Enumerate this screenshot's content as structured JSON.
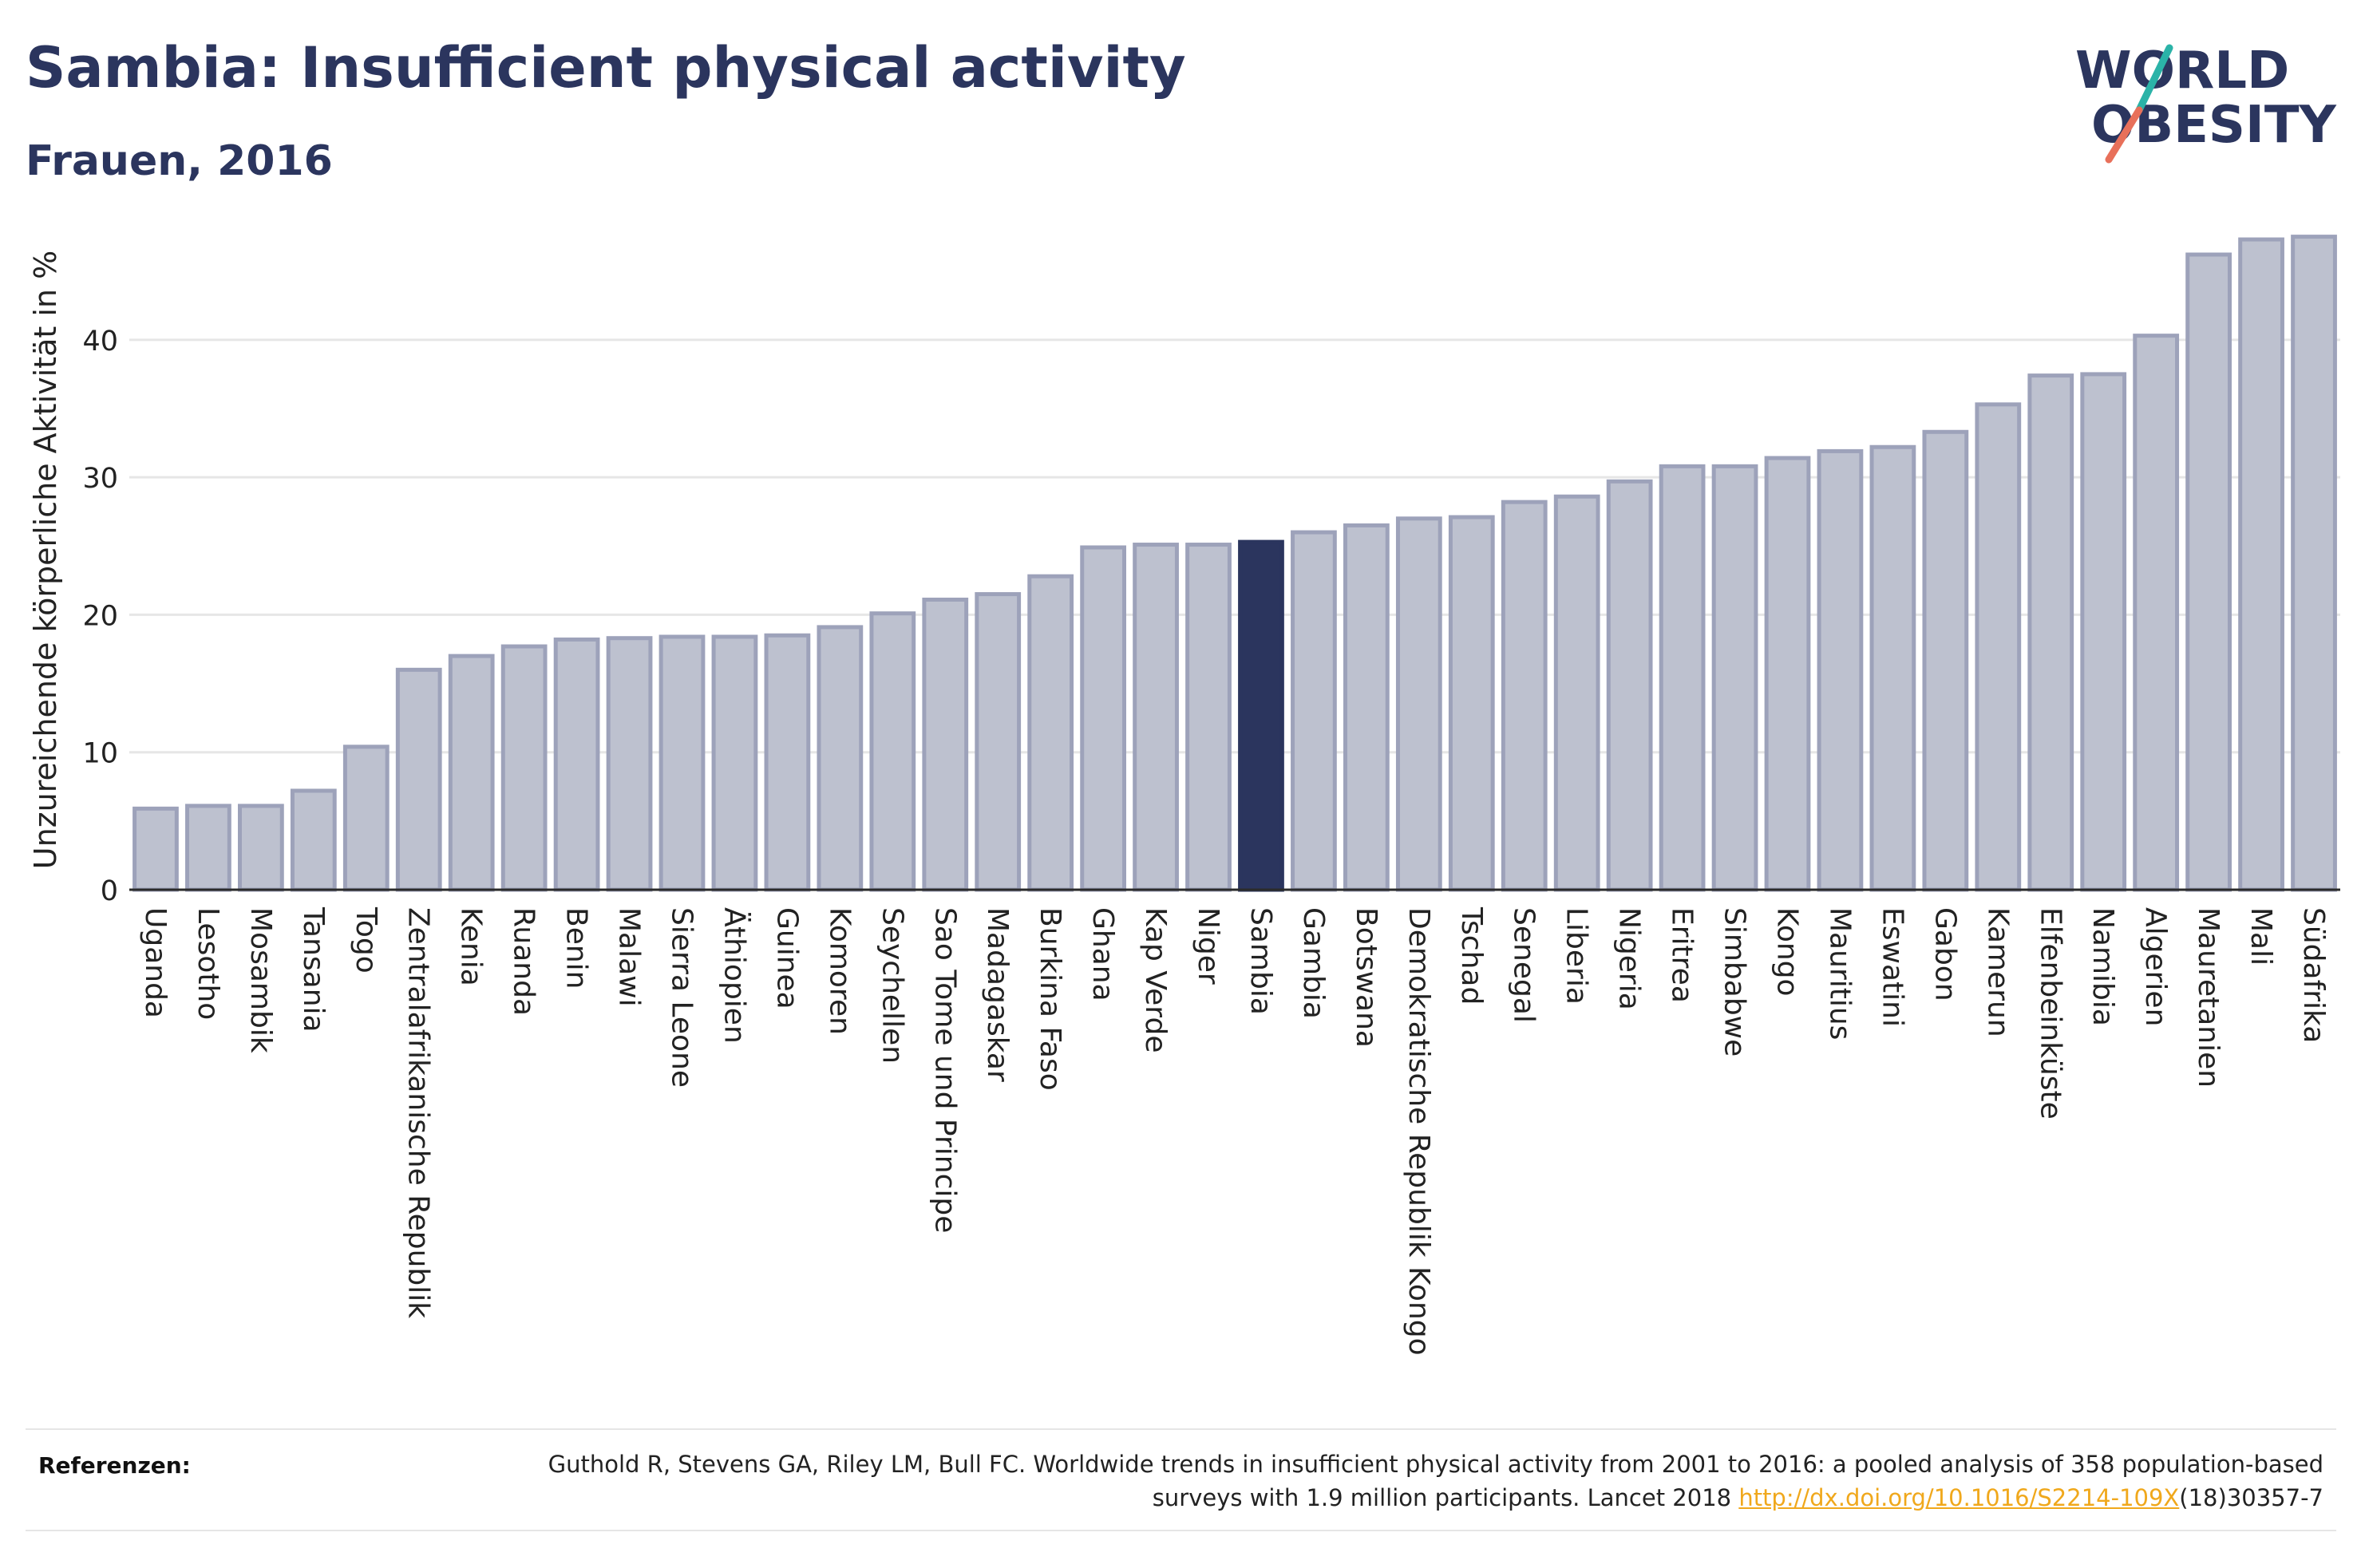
{
  "header": {
    "title": "Sambia: Insufficient physical activity",
    "subtitle": "Frauen, 2016"
  },
  "logo": {
    "line1": "WORLD",
    "line2": "OBESITY",
    "colors": {
      "text": "#2b355e",
      "slash_teal": "#2bb3a8",
      "slash_coral": "#e8705a"
    }
  },
  "colors": {
    "bar_fill": "#bdc1cf",
    "bar_stroke": "#9da2ba",
    "highlight_fill": "#2b355e",
    "grid": "#e6e6e6",
    "title": "#2b355e",
    "link": "#f0a81c"
  },
  "chart_data": {
    "type": "bar",
    "title": "Sambia: Insufficient physical activity",
    "subtitle": "Frauen, 2016",
    "xlabel": "",
    "ylabel": "Unzureichende körperliche Aktivität in %",
    "ylim": [
      0,
      48
    ],
    "yticks": [
      0,
      10,
      20,
      30,
      40
    ],
    "grid": true,
    "highlight": "Sambia",
    "categories": [
      "Uganda",
      "Lesotho",
      "Mosambik",
      "Tansania",
      "Togo",
      "Zentralafrikanische Republik",
      "Kenia",
      "Ruanda",
      "Benin",
      "Malawi",
      "Sierra Leone",
      "Äthiopien",
      "Guinea",
      "Komoren",
      "Seychellen",
      "Sao Tome und Principe",
      "Madagaskar",
      "Burkina Faso",
      "Ghana",
      "Kap Verde",
      "Niger",
      "Sambia",
      "Gambia",
      "Botswana",
      "Demokratische Republik Kongo",
      "Tschad",
      "Senegal",
      "Liberia",
      "Nigeria",
      "Eritrea",
      "Simbabwe",
      "Kongo",
      "Mauritius",
      "Eswatini",
      "Gabon",
      "Kamerun",
      "Elfenbeinküste",
      "Namibia",
      "Algerien",
      "Mauretanien",
      "Mali",
      "Südafrika"
    ],
    "values": [
      5.9,
      6.1,
      6.1,
      7.2,
      10.4,
      16.0,
      17.0,
      17.7,
      18.2,
      18.3,
      18.4,
      18.4,
      18.5,
      19.1,
      20.1,
      21.1,
      21.5,
      22.8,
      24.9,
      25.1,
      25.1,
      25.3,
      26.0,
      26.5,
      27.0,
      27.1,
      28.2,
      28.6,
      29.7,
      30.8,
      30.8,
      31.4,
      31.9,
      32.2,
      33.3,
      35.3,
      37.4,
      37.5,
      40.3,
      46.2,
      47.3,
      47.5
    ]
  },
  "references": {
    "label": "Referenzen:",
    "text_before": "Guthold R, Stevens GA, Riley LM, Bull FC. Worldwide trends in insufficient physical activity from 2001 to 2016: a pooled analysis of 358 population-based surveys with 1.9 million participants. Lancet 2018 ",
    "link": "http://dx.doi.org/10.1016/S2214-109X",
    "text_after": "(18)30357-7"
  }
}
